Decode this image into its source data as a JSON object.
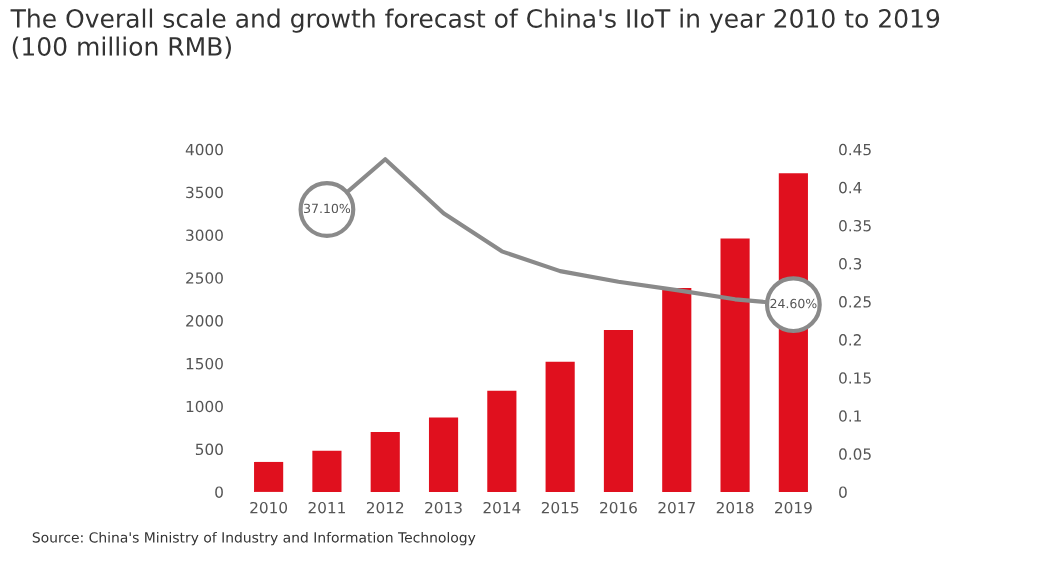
{
  "chart_data": {
    "type": "bar",
    "title": "The Overall scale and growth forecast of China's IIoT in year 2010 to 2019\n(100 million RMB)",
    "categories": [
      "2010",
      "2011",
      "2012",
      "2013",
      "2014",
      "2015",
      "2016",
      "2017",
      "2018",
      "2019"
    ],
    "series": [
      {
        "color": "#e0101e",
        "values": [
          350,
          480,
          700,
          870,
          1180,
          1520,
          1890,
          2380,
          2960,
          3720
        ]
      },
      {
        "type": "line",
        "axis": "y2",
        "color": "#8a8a8a",
        "values": [
          null,
          0.371,
          0.437,
          0.366,
          0.316,
          0.29,
          0.276,
          0.265,
          0.253,
          0.246
        ],
        "value_labels": [
          null,
          "37.10%",
          null,
          null,
          null,
          null,
          null,
          null,
          null,
          "24.60%"
        ]
      }
    ],
    "ylim": [
      0,
      4000
    ],
    "yticks": [
      0,
      500,
      1000,
      1500,
      2000,
      2500,
      3000,
      3500,
      4000
    ],
    "y2lim": [
      0,
      0.45
    ],
    "y2ticks": [
      0,
      0.05,
      0.1,
      0.15,
      0.2,
      0.25,
      0.3,
      0.35,
      0.4,
      0.45
    ],
    "grid": false,
    "legend": false,
    "marker": "none",
    "line_style": "solid",
    "annotations": [
      "Source: China's Ministry of Industry and Information Technology"
    ]
  }
}
